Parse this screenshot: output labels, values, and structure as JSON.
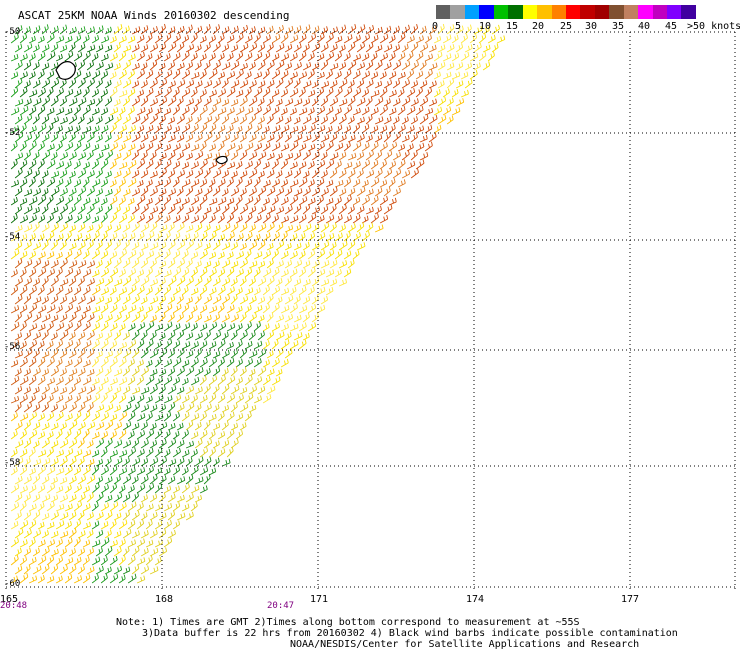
{
  "title": "ASCAT 25KM NOAA Winds 20160302 descending",
  "legend": {
    "labels": [
      "0",
      "5",
      "10",
      "15",
      "20",
      "25",
      "30",
      "35",
      "40",
      "45",
      ">50 knots"
    ],
    "colors": [
      "#606060",
      "#a0a0a0",
      "#00a0ff",
      "#0000ff",
      "#00c000",
      "#007000",
      "#ffff00",
      "#ffc000",
      "#ff8000",
      "#ff0000",
      "#c00000",
      "#a00000",
      "#805030",
      "#c08060",
      "#ff00ff",
      "#c000c0",
      "#8000ff",
      "#4000a0"
    ]
  },
  "axes": {
    "lat_labels": [
      "-50",
      "-52",
      "-54",
      "-56",
      "-58",
      "-60"
    ],
    "lon_labels": [
      "165",
      "168",
      "171",
      "174",
      "177"
    ]
  },
  "times": [
    "20:48",
    "20:47"
  ],
  "notes": [
    "Note: 1) Times are GMT 2)Times along bottom correspond to measurement at ~55S",
    "3)Data buffer is 22 hrs from 20160302 4) Black wind barbs indicate possible contamination",
    "NOAA/NESDIS/Center for Satellite Applications and Research"
  ]
}
